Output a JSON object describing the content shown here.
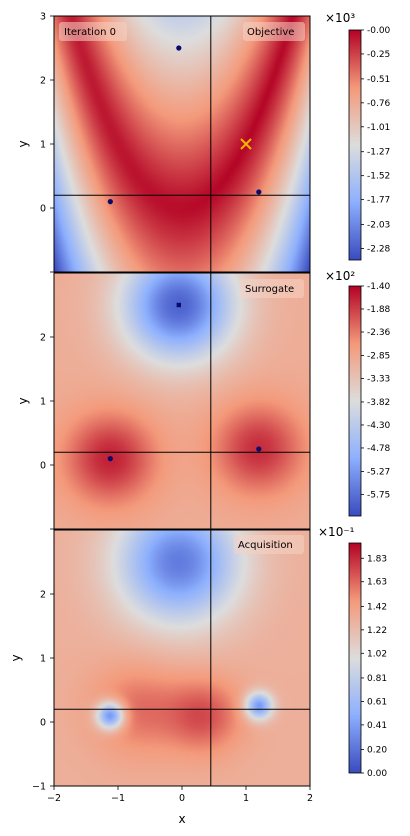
{
  "chart_data": [
    {
      "type": "heatmap",
      "panel": "objective",
      "title": "Objective",
      "annotation": "Iteration 0",
      "xlabel": "",
      "ylabel": "y",
      "xlim": [
        -2,
        2
      ],
      "ylim": [
        -1,
        3
      ],
      "yticks": [
        "0",
        "1",
        "2",
        "3"
      ],
      "colormap": "coolwarm",
      "colorbar": {
        "exponent_label": "×10³",
        "ticks": [
          "-0.00",
          "-0.25",
          "-0.51",
          "-0.76",
          "-1.01",
          "-1.27",
          "-1.52",
          "-1.77",
          "-2.03",
          "-2.28"
        ],
        "tick_values": [
          -0.0,
          -0.25,
          -0.51,
          -0.76,
          -1.01,
          -1.27,
          -1.52,
          -1.77,
          -2.03,
          -2.28
        ],
        "range": [
          -2.4,
          0.0
        ]
      },
      "crosshair": {
        "x": 0.45,
        "y": 0.2
      },
      "points": [
        {
          "x": -0.05,
          "y": 2.5,
          "marker": "dot"
        },
        {
          "x": -1.12,
          "y": 0.1,
          "marker": "dot"
        },
        {
          "x": 1.2,
          "y": 0.25,
          "marker": "dot"
        }
      ],
      "optimum": {
        "x": 1.0,
        "y": 1.0,
        "marker": "x",
        "color": "#f5b400"
      }
    },
    {
      "type": "heatmap",
      "panel": "surrogate",
      "title": "Surrogate",
      "xlabel": "",
      "ylabel": "y",
      "xlim": [
        -2,
        2
      ],
      "ylim": [
        -1,
        3
      ],
      "yticks": [
        "0",
        "1",
        "2"
      ],
      "colormap": "coolwarm",
      "colorbar": {
        "exponent_label": "×10²",
        "ticks": [
          "-1.40",
          "-1.88",
          "-2.36",
          "-2.85",
          "-3.33",
          "-3.82",
          "-4.30",
          "-4.78",
          "-5.27",
          "-5.75"
        ],
        "tick_values": [
          -1.4,
          -1.88,
          -2.36,
          -2.85,
          -3.33,
          -3.82,
          -4.3,
          -4.78,
          -5.27,
          -5.75
        ],
        "range": [
          -6.2,
          -1.4
        ]
      },
      "crosshair": {
        "x": 0.45,
        "y": 0.2
      },
      "points": [
        {
          "x": -0.05,
          "y": 2.5,
          "marker": "square"
        },
        {
          "x": -1.12,
          "y": 0.1,
          "marker": "dot"
        },
        {
          "x": 1.2,
          "y": 0.25,
          "marker": "dot"
        }
      ]
    },
    {
      "type": "heatmap",
      "panel": "acquisition",
      "title": "Acquisition",
      "xlabel": "x",
      "ylabel": "y",
      "xlim": [
        -2,
        2
      ],
      "ylim": [
        -1,
        3
      ],
      "xticks": [
        "−2",
        "−1",
        "0",
        "1",
        "2"
      ],
      "yticks": [
        "−1",
        "0",
        "1",
        "2"
      ],
      "colormap": "coolwarm",
      "colorbar": {
        "exponent_label": "×10⁻¹",
        "ticks": [
          "1.83",
          "1.63",
          "1.42",
          "1.22",
          "1.02",
          "0.81",
          "0.61",
          "0.41",
          "0.20",
          "0.00"
        ],
        "tick_values": [
          1.83,
          1.63,
          1.42,
          1.22,
          1.02,
          0.81,
          0.61,
          0.41,
          0.2,
          0.0
        ],
        "range": [
          0.0,
          1.96
        ]
      },
      "crosshair": {
        "x": 0.45,
        "y": 0.2
      }
    }
  ]
}
